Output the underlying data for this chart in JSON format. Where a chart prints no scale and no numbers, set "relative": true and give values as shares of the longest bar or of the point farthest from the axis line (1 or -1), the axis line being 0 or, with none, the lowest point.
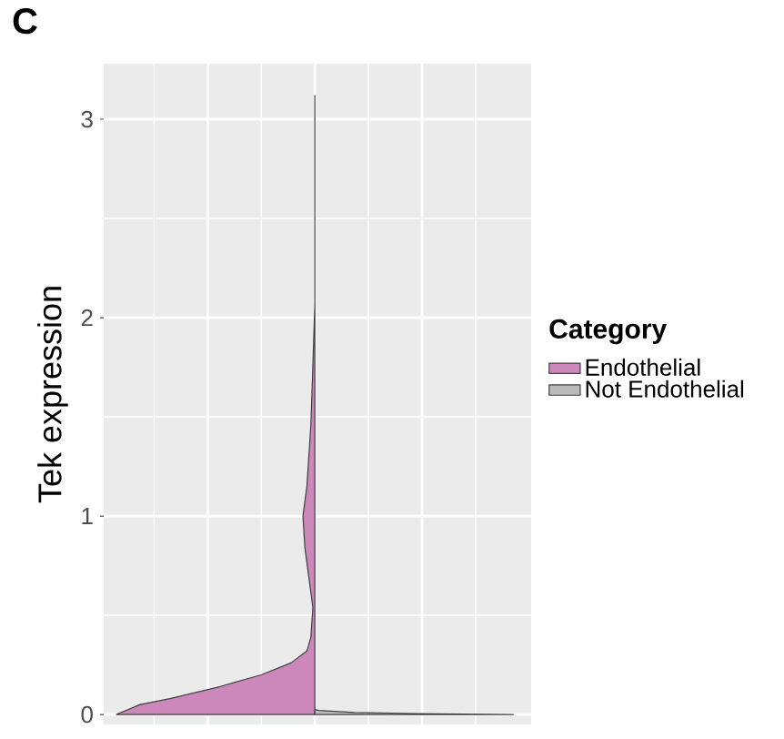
{
  "chart_data": {
    "type": "area",
    "orientation": "horizontal",
    "relative": true,
    "title": "C",
    "ylabel": "Tek expression",
    "legend_title": "Category",
    "legend": "right",
    "grid": true,
    "ylim": [
      -0.05,
      3.28
    ],
    "yticks": [
      0,
      1,
      2,
      3
    ],
    "series": [
      {
        "name": "Endothelial",
        "color": "#cc88bb",
        "x": [
          0,
          0.05,
          0.08,
          0.14,
          0.2,
          0.26,
          0.32,
          0.39,
          0.54,
          0.84,
          1.0,
          1.15,
          1.46,
          1.76,
          2.07,
          3.12
        ],
        "values": [
          -1,
          -0.88,
          -0.73,
          -0.48,
          -0.27,
          -0.12,
          -0.04,
          -0.02,
          -0.01,
          -0.05,
          -0.06,
          -0.04,
          -0.02,
          -0.01,
          0,
          0
        ]
      },
      {
        "name": "Not Endothelial",
        "color": "#bbbbbb",
        "x": [
          0,
          0.005,
          0.01,
          0.02,
          0.025
        ],
        "values": [
          1,
          0.5,
          0.2,
          0.02,
          0
        ]
      }
    ]
  }
}
